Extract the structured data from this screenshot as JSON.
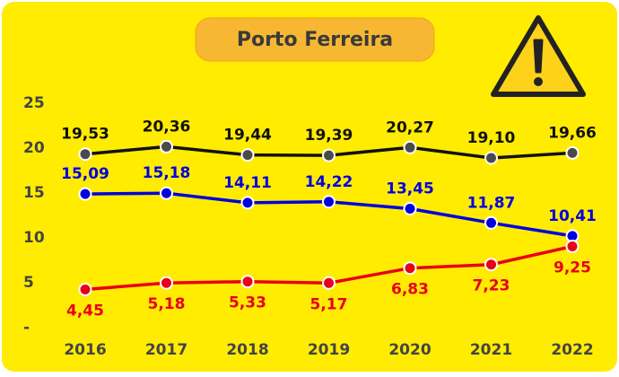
{
  "chart_data": {
    "type": "line",
    "title": "Porto Ferreira",
    "categories": [
      "2016",
      "2017",
      "2018",
      "2019",
      "2020",
      "2021",
      "2022"
    ],
    "series": [
      {
        "color": "#111111",
        "values": [
          19.53,
          20.36,
          19.44,
          19.39,
          20.27,
          19.1,
          19.66
        ],
        "value_labels": [
          "19,53",
          "20,36",
          "19,44",
          "19,39",
          "20,27",
          "19,10",
          "19,66"
        ]
      },
      {
        "color": "#0000dd",
        "values": [
          15.09,
          15.18,
          14.11,
          14.22,
          13.45,
          11.87,
          10.41
        ],
        "value_labels": [
          "15,09",
          "15,18",
          "14,11",
          "14,22",
          "13,45",
          "11,87",
          "10,41"
        ]
      },
      {
        "color": "#e8001a",
        "values": [
          4.45,
          5.18,
          5.33,
          5.17,
          6.83,
          7.23,
          9.25
        ],
        "value_labels": [
          "4,45",
          "5,18",
          "5,33",
          "5,17",
          "6,83",
          "7,23",
          "9,25"
        ]
      }
    ],
    "ylim": [
      0,
      25
    ],
    "yticks": [
      {
        "value": 0,
        "label": "-"
      },
      5,
      10,
      15,
      20,
      25
    ],
    "grid": false
  }
}
